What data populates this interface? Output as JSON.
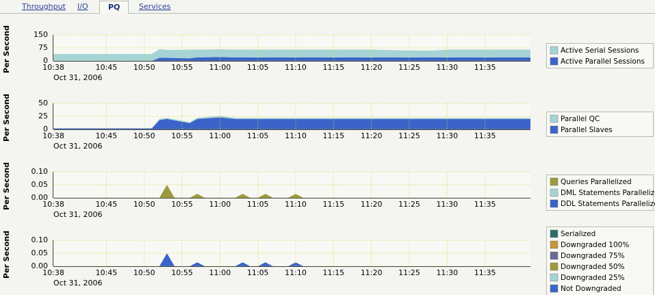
{
  "tabs": [
    {
      "label": "Throughput"
    },
    {
      "label": "I/O"
    },
    {
      "label": "PQ",
      "selected": true
    },
    {
      "label": "Services"
    }
  ],
  "chart_data": [
    {
      "type": "area",
      "y_label": "Per Second",
      "date_label": "Oct 31, 2006",
      "x": [
        "10:38",
        "10:51",
        "10:52",
        "10:53",
        "10:56",
        "10:57",
        "11:00",
        "11:02",
        "11:10",
        "11:20",
        "11:25",
        "11:28",
        "11:30",
        "11:41"
      ],
      "series": [
        {
          "name": "Active Serial Sessions",
          "color": "#a6d3d6",
          "values": [
            40,
            40,
            50,
            45,
            50,
            45,
            45,
            45,
            45,
            45,
            40,
            40,
            45,
            45
          ]
        },
        {
          "name": "Active Parallel Sessions",
          "color": "#3b63c9",
          "values": [
            0,
            0,
            18,
            18,
            15,
            20,
            22,
            20,
            20,
            20,
            20,
            20,
            20,
            20
          ]
        }
      ],
      "xlim": [
        "10:38",
        "11:41"
      ],
      "xticks": [
        "10:38",
        "10:45",
        "10:50",
        "10:55",
        "11:00",
        "11:05",
        "11:10",
        "11:15",
        "11:20",
        "11:25",
        "11:30",
        "11:35"
      ],
      "ylim": [
        0,
        150
      ],
      "yticks": [
        0,
        75,
        150
      ],
      "grid": true
    },
    {
      "type": "area",
      "y_label": "Per Second",
      "date_label": "Oct 31, 2006",
      "x": [
        "10:38",
        "10:51",
        "10:52",
        "10:53",
        "10:56",
        "10:57",
        "11:00",
        "11:02",
        "11:10",
        "11:20",
        "11:25",
        "11:28",
        "11:30",
        "11:41"
      ],
      "series": [
        {
          "name": "Parallel QC",
          "color": "#a6d3d6",
          "values": [
            0,
            0,
            2,
            2,
            2,
            2,
            3,
            2,
            2,
            2,
            2,
            2,
            2,
            2
          ]
        },
        {
          "name": "Parallel Slaves",
          "color": "#3b63c9",
          "values": [
            2,
            2,
            18,
            20,
            12,
            20,
            23,
            20,
            20,
            20,
            20,
            20,
            20,
            20
          ]
        }
      ],
      "xlim": [
        "10:38",
        "11:41"
      ],
      "xticks": [
        "10:38",
        "10:45",
        "10:50",
        "10:55",
        "11:00",
        "11:05",
        "11:10",
        "11:15",
        "11:20",
        "11:25",
        "11:30",
        "11:35"
      ],
      "ylim": [
        0,
        50
      ],
      "yticks": [
        0,
        25,
        50
      ],
      "grid": true
    },
    {
      "type": "area",
      "y_label": "Per Second",
      "date_label": "Oct 31, 2006",
      "x": [
        "10:38",
        "10:52",
        "10:53",
        "10:54",
        "10:56",
        "10:57",
        "10:58",
        "11:02",
        "11:03",
        "11:04",
        "11:05",
        "11:06",
        "11:07",
        "11:09",
        "11:10",
        "11:11",
        "11:41"
      ],
      "series": [
        {
          "name": "Queries Parallelized",
          "color": "#9c9a3c",
          "values": [
            0,
            0,
            0.05,
            0,
            0,
            0.015,
            0,
            0,
            0.015,
            0,
            0,
            0.015,
            0,
            0,
            0.015,
            0,
            0
          ]
        },
        {
          "name": "DML Statements Parallelized",
          "color": "#a6d3d6",
          "values": [
            0,
            0,
            0,
            0,
            0,
            0,
            0,
            0,
            0,
            0,
            0,
            0,
            0,
            0,
            0,
            0,
            0
          ]
        },
        {
          "name": "DDL Statements Parallelized",
          "color": "#3b63c9",
          "values": [
            0,
            0,
            0,
            0,
            0,
            0,
            0,
            0,
            0,
            0,
            0,
            0,
            0,
            0,
            0,
            0,
            0
          ]
        }
      ],
      "xlim": [
        "10:38",
        "11:41"
      ],
      "xticks": [
        "10:38",
        "10:45",
        "10:50",
        "10:55",
        "11:00",
        "11:05",
        "11:10",
        "11:15",
        "11:20",
        "11:25",
        "11:30",
        "11:35"
      ],
      "ylim": [
        0,
        0.1
      ],
      "yticks": [
        {
          "value": 0,
          "label": "0.00"
        },
        {
          "value": 0.05,
          "label": "0.05"
        },
        {
          "value": 0.1,
          "label": "0.10"
        }
      ],
      "grid": true
    },
    {
      "type": "area",
      "y_label": "Per Second",
      "date_label": "Oct 31, 2006",
      "x": [
        "10:38",
        "10:52",
        "10:53",
        "10:54",
        "10:56",
        "10:57",
        "10:58",
        "11:02",
        "11:03",
        "11:04",
        "11:05",
        "11:06",
        "11:07",
        "11:09",
        "11:10",
        "11:11",
        "11:41"
      ],
      "series": [
        {
          "name": "Serialized",
          "color": "#2a6d6b",
          "values": [
            0,
            0,
            0,
            0,
            0,
            0,
            0,
            0,
            0,
            0,
            0,
            0,
            0,
            0,
            0,
            0,
            0
          ]
        },
        {
          "name": "Downgraded 100%",
          "color": "#c9953b",
          "values": [
            0,
            0,
            0,
            0,
            0,
            0,
            0,
            0,
            0,
            0,
            0,
            0,
            0,
            0,
            0,
            0,
            0
          ]
        },
        {
          "name": "Downgraded 75%",
          "color": "#6b6a9b",
          "values": [
            0,
            0,
            0,
            0,
            0,
            0,
            0,
            0,
            0,
            0,
            0,
            0,
            0,
            0,
            0,
            0,
            0
          ]
        },
        {
          "name": "Downgraded 50%",
          "color": "#9c9a3c",
          "values": [
            0,
            0,
            0,
            0,
            0,
            0,
            0,
            0,
            0,
            0,
            0,
            0,
            0,
            0,
            0,
            0,
            0
          ]
        },
        {
          "name": "Downgraded 25%",
          "color": "#a6d3d6",
          "values": [
            0,
            0,
            0,
            0,
            0,
            0,
            0,
            0,
            0,
            0,
            0,
            0,
            0,
            0,
            0,
            0,
            0
          ]
        },
        {
          "name": "Not Downgraded",
          "color": "#3b63c9",
          "values": [
            0,
            0,
            0.05,
            0,
            0,
            0.015,
            0,
            0,
            0.015,
            0,
            0,
            0.015,
            0,
            0,
            0.015,
            0,
            0
          ]
        }
      ],
      "xlim": [
        "10:38",
        "11:41"
      ],
      "xticks": [
        "10:38",
        "10:45",
        "10:50",
        "10:55",
        "11:00",
        "11:05",
        "11:10",
        "11:15",
        "11:20",
        "11:25",
        "11:30",
        "11:35"
      ],
      "ylim": [
        0,
        0.1
      ],
      "yticks": [
        {
          "value": 0,
          "label": "0.00"
        },
        {
          "value": 0.05,
          "label": "0.05"
        },
        {
          "value": 0.1,
          "label": "0.10"
        }
      ],
      "grid": true
    }
  ]
}
